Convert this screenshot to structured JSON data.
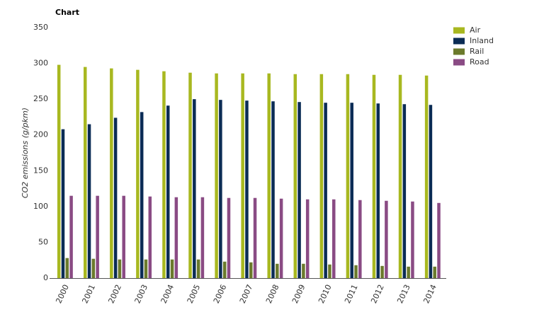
{
  "chart_data": {
    "type": "bar",
    "title": "Chart",
    "y_label": "CO2 emissions (g/pkm)",
    "categories": [
      "2000",
      "2001",
      "2002",
      "2003",
      "2004",
      "2005",
      "2006",
      "2007",
      "2008",
      "2009",
      "2010",
      "2011",
      "2012",
      "2013",
      "2014"
    ],
    "series": [
      {
        "name": "Air",
        "color": "#a8b820",
        "values": [
          298,
          295,
          293,
          291,
          289,
          287,
          286,
          286,
          286,
          285,
          285,
          285,
          284,
          284,
          283
        ]
      },
      {
        "name": "Inland",
        "color": "#0b2c55",
        "values": [
          208,
          215,
          224,
          232,
          241,
          250,
          249,
          248,
          247,
          246,
          245,
          245,
          244,
          243,
          242
        ]
      },
      {
        "name": "Rail",
        "color": "#6b7a2c",
        "values": [
          28,
          27,
          26,
          26,
          26,
          26,
          23,
          22,
          20,
          20,
          19,
          18,
          17,
          16,
          16
        ]
      },
      {
        "name": "Road",
        "color": "#8a4b84",
        "values": [
          115,
          115,
          115,
          114,
          113,
          113,
          112,
          112,
          111,
          110,
          110,
          109,
          108,
          107,
          105
        ]
      }
    ],
    "ylim": [
      0,
      350
    ],
    "yticks": [
      0,
      50,
      100,
      150,
      200,
      250,
      300,
      350
    ],
    "grid": false,
    "legend": "top-right"
  }
}
